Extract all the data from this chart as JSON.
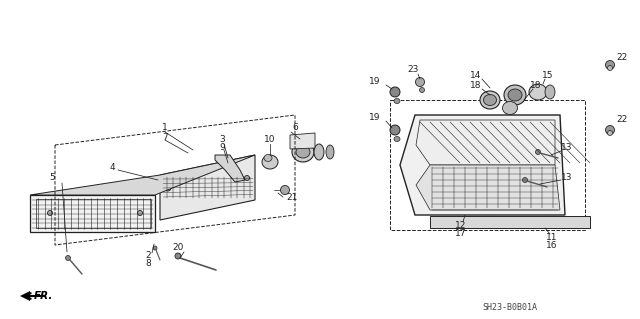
{
  "bg_color": "#ffffff",
  "lc": "#222222",
  "tc": "#222222",
  "diagram_code": "SH23-B0B01A",
  "figsize": [
    6.4,
    3.19
  ],
  "dpi": 100
}
